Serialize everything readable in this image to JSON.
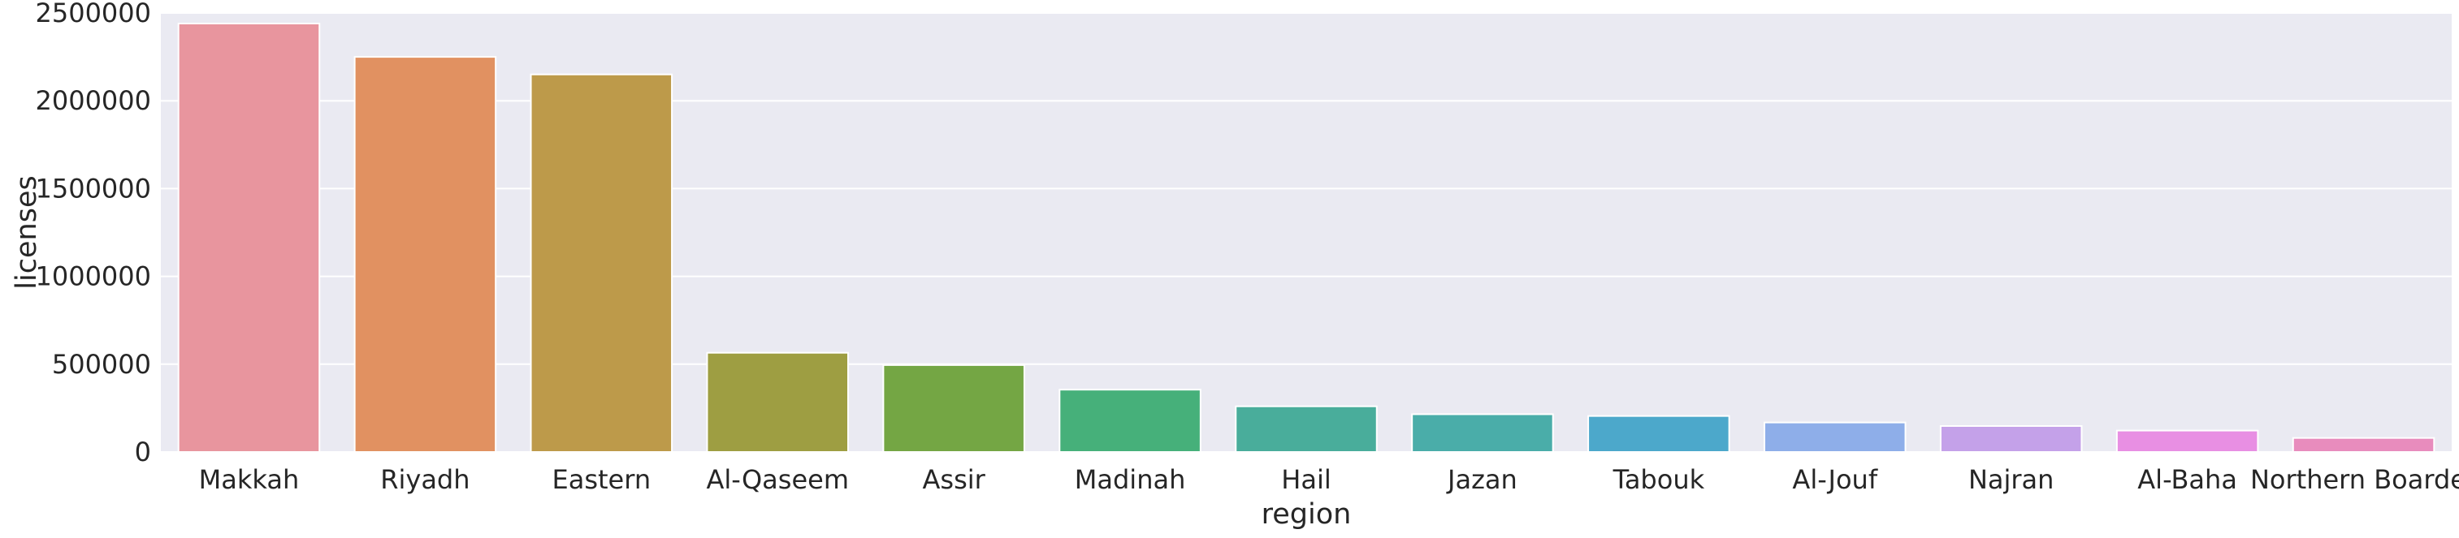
{
  "chart_data": {
    "type": "bar",
    "xlabel": "region",
    "ylabel": "licenses",
    "ylim": [
      0,
      2500000
    ],
    "yticks": [
      0,
      500000,
      1000000,
      1500000,
      2000000,
      2500000
    ],
    "ytick_labels": [
      "0",
      "500000",
      "1000000",
      "1500000",
      "2000000",
      "2500000"
    ],
    "grid": true,
    "legend": "none",
    "categories": [
      "Makkah",
      "Riyadh",
      "Eastern",
      "Al-Qaseem",
      "Assir",
      "Madinah",
      "Hail",
      "Jazan",
      "Tabouk",
      "Al-Jouf",
      "Najran",
      "Al-Baha",
      "Northern Boarder"
    ],
    "values": [
      2440000,
      2250000,
      2150000,
      565000,
      495000,
      355000,
      260000,
      215000,
      205000,
      168000,
      148000,
      122000,
      80000
    ],
    "colors": [
      "#e8959e",
      "#e19161",
      "#bd9a4a",
      "#9e9e42",
      "#74a644",
      "#46b07a",
      "#49ad9b",
      "#4aada9",
      "#4ca8cb",
      "#8eaee9",
      "#c4a1e9",
      "#e88fe3",
      "#e88cbd"
    ],
    "background": "#eaeaf2",
    "grid_color": "#ffffff"
  }
}
